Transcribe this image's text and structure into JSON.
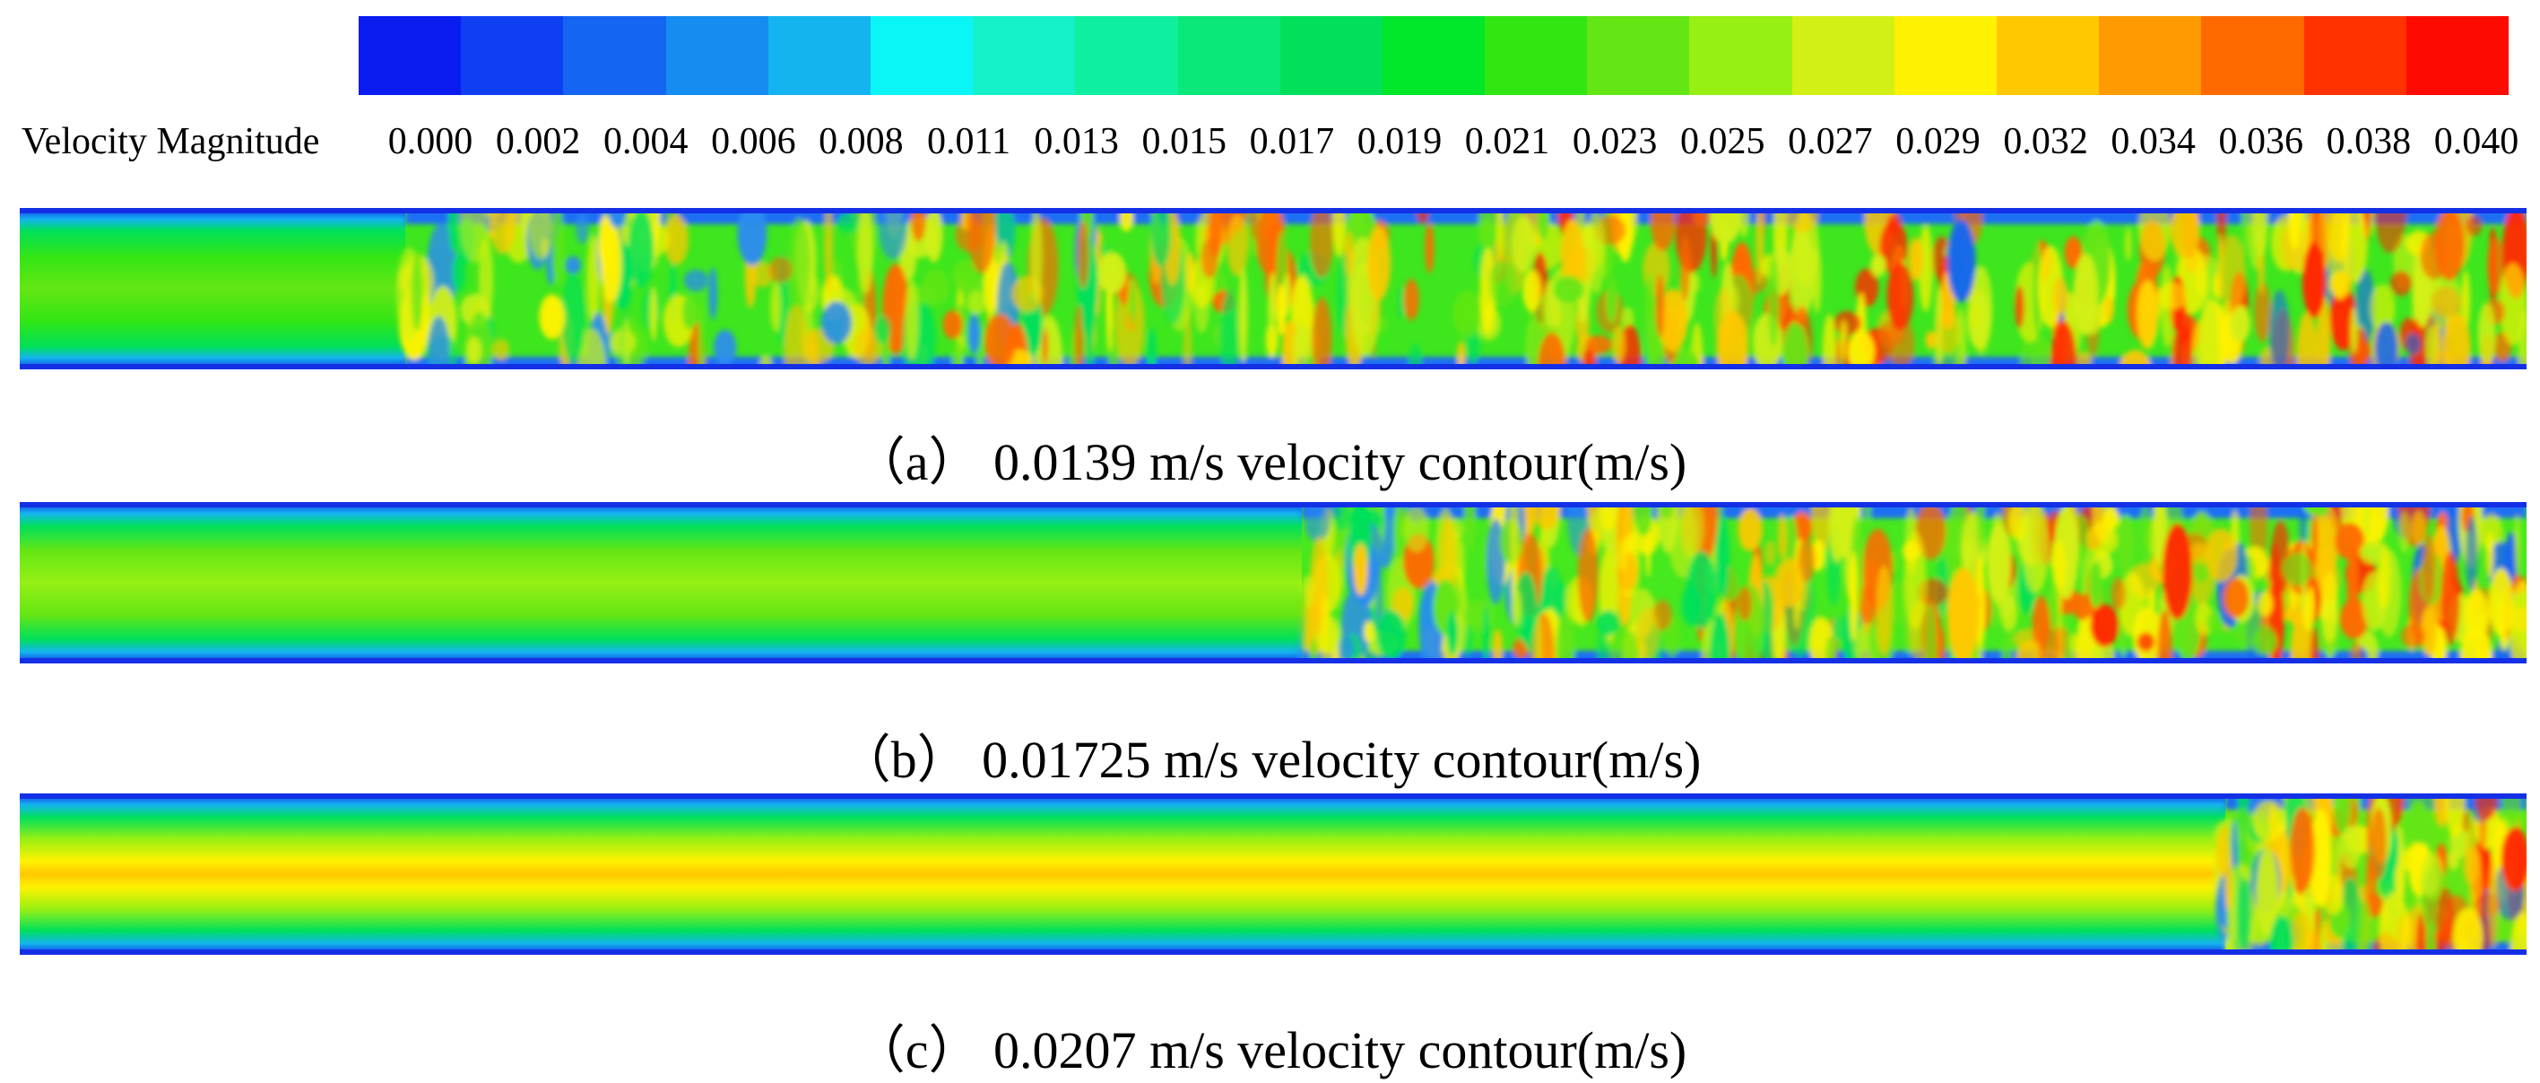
{
  "legend": {
    "title": "Velocity Magnitude",
    "ticks": [
      "0.000",
      "0.002",
      "0.004",
      "0.006",
      "0.008",
      "0.011",
      "0.013",
      "0.015",
      "0.017",
      "0.019",
      "0.021",
      "0.023",
      "0.025",
      "0.027",
      "0.029",
      "0.032",
      "0.034",
      "0.036",
      "0.038",
      "0.040"
    ],
    "colors": [
      "#0a1cf0",
      "#0f3ff2",
      "#1466f2",
      "#148cf0",
      "#14b4f0",
      "#0af5f5",
      "#14f0c8",
      "#0ef0a0",
      "#0ae87a",
      "#00e05a",
      "#00e628",
      "#32e614",
      "#64e614",
      "#96f014",
      "#d2f014",
      "#fff200",
      "#ffc800",
      "#ff9a00",
      "#ff6a00",
      "#ff3200",
      "#ff0a00"
    ]
  },
  "panels": [
    {
      "caption": "（a） 0.0139 m/s velocity contour(m/s)"
    },
    {
      "caption": "（b） 0.01725 m/s velocity contour(m/s)"
    },
    {
      "caption": "（c） 0.0207 m/s velocity contour(m/s)"
    }
  ]
}
